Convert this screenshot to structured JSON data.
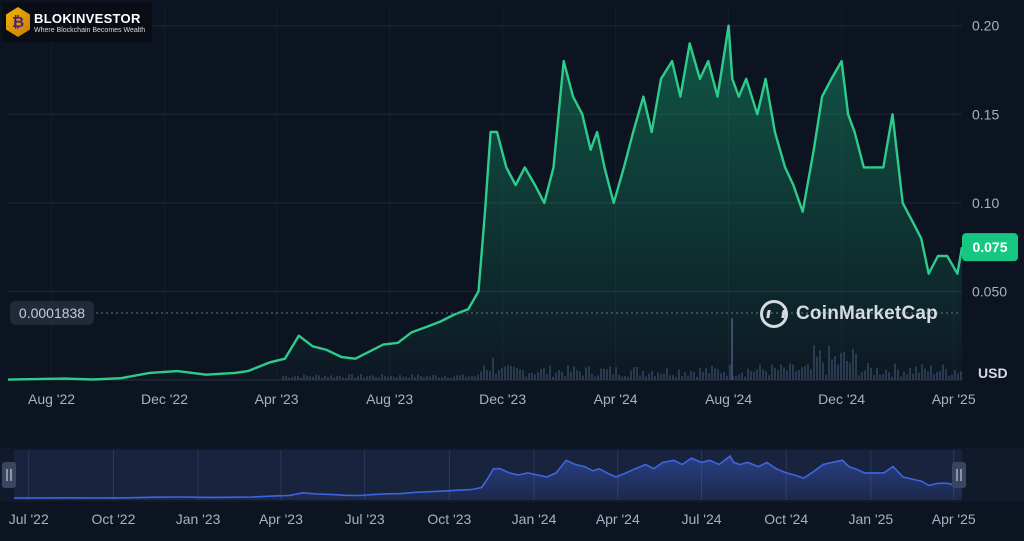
{
  "brand": {
    "logo_icon": "bitcoin-shield-icon",
    "logo_glyph": "₿",
    "name": "BLOKINVESTOR",
    "tagline": "Where Blockchain Becomes Wealth"
  },
  "watermark": {
    "text": "CoinMarketCap",
    "icon": "coinmarketcap-icon"
  },
  "colors": {
    "line": "#2ecc8b",
    "price_tag": "#16c784",
    "navigator_line": "#3f64e0",
    "background": "#0d1421"
  },
  "chart_data": [
    {
      "type": "area",
      "xlabel": "",
      "ylabel": "",
      "x_ticks": [
        "Aug '22",
        "Dec '22",
        "Apr '23",
        "Aug '23",
        "Dec '23",
        "Apr '24",
        "Aug '24",
        "Dec '24",
        "Apr '25"
      ],
      "y_ticks": [
        "0.050",
        "0.10",
        "0.15",
        "0.20"
      ],
      "y_axis_position": "right",
      "ylim": [
        0,
        0.21
      ],
      "grid": true,
      "currency": "USD",
      "current_price": "0.075",
      "start_price": "0.0001838",
      "series": [
        {
          "x": [
            "2022-06-15",
            "2022-07-15",
            "2022-08-15",
            "2022-09-15",
            "2022-10-15",
            "2022-11-15",
            "2022-12-15",
            "2023-01-15",
            "2023-02-15",
            "2023-03-01",
            "2023-03-25",
            "2023-04-10",
            "2023-04-25",
            "2023-05-10",
            "2023-05-25",
            "2023-06-10",
            "2023-06-25",
            "2023-07-10",
            "2023-07-25",
            "2023-08-10",
            "2023-08-25",
            "2023-09-10",
            "2023-09-25",
            "2023-10-10",
            "2023-10-25",
            "2023-11-05",
            "2023-11-12",
            "2023-11-18",
            "2023-11-25",
            "2023-12-05",
            "2023-12-15",
            "2023-12-25",
            "2024-01-05",
            "2024-01-15",
            "2024-01-25",
            "2024-02-05",
            "2024-02-15",
            "2024-02-25",
            "2024-03-05",
            "2024-03-12",
            "2024-03-20",
            "2024-03-30",
            "2024-04-10",
            "2024-04-20",
            "2024-05-01",
            "2024-05-10",
            "2024-05-20",
            "2024-06-01",
            "2024-06-10",
            "2024-06-20",
            "2024-07-01",
            "2024-07-10",
            "2024-07-20",
            "2024-08-01",
            "2024-08-05",
            "2024-08-12",
            "2024-08-20",
            "2024-09-01",
            "2024-09-10",
            "2024-09-20",
            "2024-10-01",
            "2024-10-10",
            "2024-10-20",
            "2024-11-01",
            "2024-11-10",
            "2024-11-20",
            "2024-12-01",
            "2024-12-08",
            "2024-12-15",
            "2024-12-25",
            "2025-01-05",
            "2025-01-15",
            "2025-01-25",
            "2025-02-05",
            "2025-02-15",
            "2025-02-25",
            "2025-03-05",
            "2025-03-15",
            "2025-03-25",
            "2025-04-05",
            "2025-04-10"
          ],
          "y": [
            0.0002,
            0.0005,
            0.0008,
            0.0003,
            0.001,
            0.004,
            0.005,
            0.003,
            0.004,
            0.005,
            0.01,
            0.012,
            0.025,
            0.019,
            0.017,
            0.013,
            0.012,
            0.016,
            0.02,
            0.021,
            0.027,
            0.03,
            0.033,
            0.037,
            0.04,
            0.05,
            0.095,
            0.14,
            0.14,
            0.12,
            0.11,
            0.12,
            0.11,
            0.1,
            0.12,
            0.18,
            0.16,
            0.15,
            0.13,
            0.14,
            0.12,
            0.1,
            0.12,
            0.14,
            0.16,
            0.14,
            0.17,
            0.18,
            0.16,
            0.19,
            0.17,
            0.18,
            0.16,
            0.2,
            0.17,
            0.16,
            0.17,
            0.15,
            0.17,
            0.14,
            0.12,
            0.11,
            0.095,
            0.13,
            0.16,
            0.17,
            0.18,
            0.15,
            0.14,
            0.12,
            0.12,
            0.12,
            0.15,
            0.1,
            0.09,
            0.08,
            0.06,
            0.07,
            0.07,
            0.06,
            0.075
          ]
        }
      ]
    },
    {
      "type": "area",
      "role": "navigator",
      "x_ticks": [
        "Jul '22",
        "Oct '22",
        "Jan '23",
        "Apr '23",
        "Jul '23",
        "Oct '23",
        "Jan '24",
        "Apr '24",
        "Jul '24",
        "Oct '24",
        "Jan '25",
        "Apr '25"
      ]
    }
  ]
}
